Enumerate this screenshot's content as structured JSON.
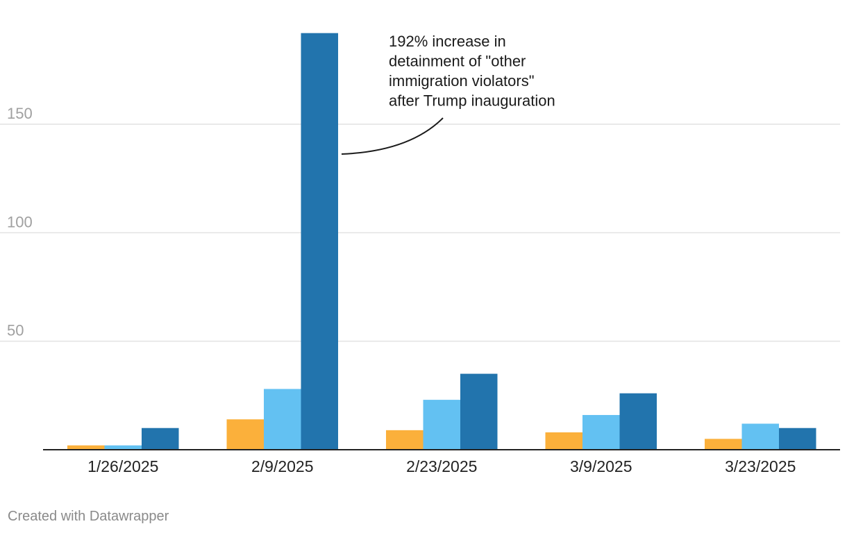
{
  "chart_data": {
    "type": "bar",
    "title": "",
    "xlabel": "",
    "ylabel": "",
    "categories": [
      "1/26/2025",
      "2/9/2025",
      "2/23/2025",
      "3/9/2025",
      "3/23/2025"
    ],
    "series": [
      {
        "color": "#fbb03b",
        "values": [
          2,
          14,
          9,
          8,
          5
        ]
      },
      {
        "color": "#63c1f2",
        "values": [
          2,
          28,
          23,
          16,
          12
        ]
      },
      {
        "color": "#2274ad",
        "values": [
          10,
          192,
          35,
          26,
          10
        ]
      }
    ],
    "ylim": [
      0,
      192
    ],
    "yticks": [
      50,
      100,
      150
    ],
    "grid": true,
    "annotation": {
      "lines": [
        "192% increase in",
        "detainment of \"other",
        "immigration violators\"",
        "after Trump inauguration"
      ],
      "target_category": "2/9/2025",
      "target_series": 2
    }
  },
  "footer": {
    "credit": "Created with Datawrapper"
  }
}
